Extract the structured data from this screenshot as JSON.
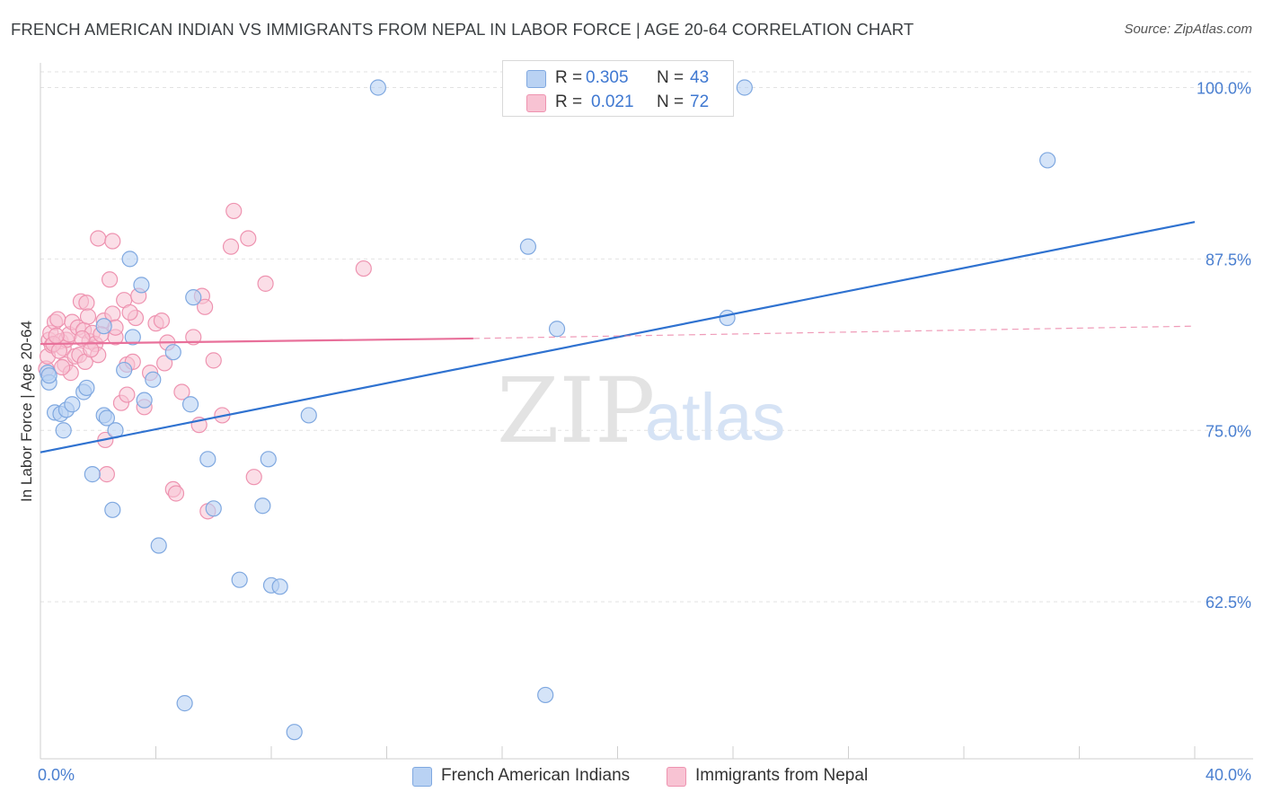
{
  "title": "FRENCH AMERICAN INDIAN VS IMMIGRANTS FROM NEPAL IN LABOR FORCE | AGE 20-64 CORRELATION CHART",
  "source": "Source: ZipAtlas.com",
  "watermark": {
    "zip": "ZIP",
    "atlas": "atlas"
  },
  "legend": {
    "series1": {
      "r_label": "R =",
      "r_value": "0.305",
      "n_label": "N =",
      "n_value": "43"
    },
    "series2": {
      "r_label": "R =",
      "r_value": "0.021",
      "n_label": "N =",
      "n_value": "72"
    }
  },
  "colors": {
    "blue_fill": "#b9d2f3",
    "blue_stroke": "#7fa8e0",
    "blue_line": "#2f72d0",
    "pink_fill": "#f8c3d3",
    "pink_stroke": "#ee93b0",
    "pink_line": "#e8709a",
    "axis_text": "#4a7fd0",
    "grid": "#e2e2e2"
  },
  "chart_data": {
    "type": "scatter",
    "title": "FRENCH AMERICAN INDIAN VS IMMIGRANTS FROM NEPAL IN LABOR FORCE | AGE 20-64 CORRELATION CHART",
    "xlabel": "",
    "ylabel": "In Labor Force | Age 20-64",
    "xlim": [
      0,
      40
    ],
    "ylim": [
      51,
      101.5
    ],
    "x_tick_labels": [
      "0.0%",
      "40.0%"
    ],
    "y_ticks": [
      62.5,
      75.0,
      87.5,
      100.0
    ],
    "y_tick_labels": [
      "62.5%",
      "75.0%",
      "87.5%",
      "100.0%"
    ],
    "grid": true,
    "series": [
      {
        "name": "French American Indians",
        "points": [
          [
            0.25,
            79.2
          ],
          [
            0.3,
            78.5
          ],
          [
            0.5,
            76.3
          ],
          [
            0.7,
            76.2
          ],
          [
            0.8,
            75.0
          ],
          [
            0.9,
            76.5
          ],
          [
            1.1,
            76.9
          ],
          [
            1.5,
            77.8
          ],
          [
            1.6,
            78.1
          ],
          [
            1.8,
            71.8
          ],
          [
            2.2,
            82.6
          ],
          [
            2.2,
            76.1
          ],
          [
            2.3,
            75.9
          ],
          [
            2.5,
            69.2
          ],
          [
            2.6,
            75.0
          ],
          [
            2.9,
            79.4
          ],
          [
            3.1,
            87.5
          ],
          [
            3.2,
            81.8
          ],
          [
            3.5,
            85.6
          ],
          [
            3.6,
            77.2
          ],
          [
            3.9,
            78.7
          ],
          [
            4.1,
            66.6
          ],
          [
            4.6,
            80.7
          ],
          [
            5.0,
            55.1
          ],
          [
            5.2,
            76.9
          ],
          [
            5.3,
            84.7
          ],
          [
            5.8,
            72.9
          ],
          [
            6.0,
            69.3
          ],
          [
            6.9,
            64.1
          ],
          [
            7.7,
            69.5
          ],
          [
            7.9,
            72.9
          ],
          [
            8.0,
            63.7
          ],
          [
            8.3,
            63.6
          ],
          [
            8.8,
            53.0
          ],
          [
            9.3,
            76.1
          ],
          [
            11.7,
            100.0
          ],
          [
            16.9,
            88.4
          ],
          [
            17.5,
            55.7
          ],
          [
            17.9,
            82.4
          ],
          [
            23.8,
            83.2
          ],
          [
            24.4,
            100.0
          ],
          [
            34.9,
            94.7
          ],
          [
            0.3,
            79.0
          ]
        ]
      },
      {
        "name": "Immigrants from Nepal",
        "points": [
          [
            0.2,
            79.5
          ],
          [
            0.25,
            80.4
          ],
          [
            0.3,
            81.6
          ],
          [
            0.35,
            82.1
          ],
          [
            0.4,
            81.2
          ],
          [
            0.5,
            82.9
          ],
          [
            0.6,
            83.1
          ],
          [
            0.7,
            81.5
          ],
          [
            0.8,
            81.0
          ],
          [
            0.85,
            79.8
          ],
          [
            0.9,
            81.6
          ],
          [
            1.0,
            82.0
          ],
          [
            1.05,
            79.2
          ],
          [
            1.1,
            82.9
          ],
          [
            1.2,
            80.4
          ],
          [
            1.3,
            82.5
          ],
          [
            1.35,
            80.5
          ],
          [
            1.4,
            84.4
          ],
          [
            1.5,
            82.3
          ],
          [
            1.55,
            80.0
          ],
          [
            1.6,
            84.3
          ],
          [
            1.7,
            81.5
          ],
          [
            1.8,
            82.1
          ],
          [
            1.9,
            81.3
          ],
          [
            2.0,
            80.5
          ],
          [
            2.0,
            89.0
          ],
          [
            2.2,
            83.0
          ],
          [
            2.25,
            74.3
          ],
          [
            2.3,
            71.8
          ],
          [
            2.4,
            86.0
          ],
          [
            2.5,
            88.8
          ],
          [
            2.5,
            83.5
          ],
          [
            2.6,
            81.8
          ],
          [
            2.6,
            82.5
          ],
          [
            2.8,
            77.0
          ],
          [
            2.9,
            84.5
          ],
          [
            3.0,
            79.8
          ],
          [
            3.0,
            77.6
          ],
          [
            3.2,
            80.0
          ],
          [
            3.3,
            83.2
          ],
          [
            3.4,
            84.8
          ],
          [
            3.6,
            76.7
          ],
          [
            3.8,
            79.2
          ],
          [
            4.0,
            82.8
          ],
          [
            4.2,
            83.0
          ],
          [
            4.4,
            81.4
          ],
          [
            4.6,
            70.7
          ],
          [
            4.7,
            70.4
          ],
          [
            4.9,
            77.8
          ],
          [
            5.3,
            81.8
          ],
          [
            5.5,
            75.4
          ],
          [
            5.6,
            84.8
          ],
          [
            5.7,
            84.0
          ],
          [
            5.8,
            69.1
          ],
          [
            6.0,
            80.1
          ],
          [
            6.3,
            76.1
          ],
          [
            6.6,
            88.4
          ],
          [
            6.7,
            91.0
          ],
          [
            7.2,
            89.0
          ],
          [
            7.4,
            71.6
          ],
          [
            7.8,
            85.7
          ],
          [
            11.2,
            86.8
          ],
          [
            0.45,
            81.3
          ],
          [
            0.55,
            81.9
          ],
          [
            0.65,
            80.8
          ],
          [
            0.75,
            79.6
          ],
          [
            1.45,
            81.7
          ],
          [
            1.65,
            83.3
          ],
          [
            1.75,
            80.9
          ],
          [
            2.1,
            82.0
          ],
          [
            3.1,
            83.6
          ],
          [
            4.3,
            79.9
          ]
        ]
      }
    ],
    "trend_lines": [
      {
        "series": "French American Indians",
        "x0": 0,
        "y0": 73.4,
        "x1": 40,
        "y1": 90.2,
        "style": "solid"
      },
      {
        "series": "Immigrants from Nepal",
        "x0": 0,
        "y0": 81.3,
        "x1": 15,
        "y1": 81.7,
        "style": "solid"
      },
      {
        "series": "Immigrants from Nepal (extrapolated)",
        "x0": 15,
        "y0": 81.7,
        "x1": 40,
        "y1": 82.6,
        "style": "dashed"
      }
    ]
  },
  "bottom_legend": [
    "French American Indians",
    "Immigrants from Nepal"
  ]
}
